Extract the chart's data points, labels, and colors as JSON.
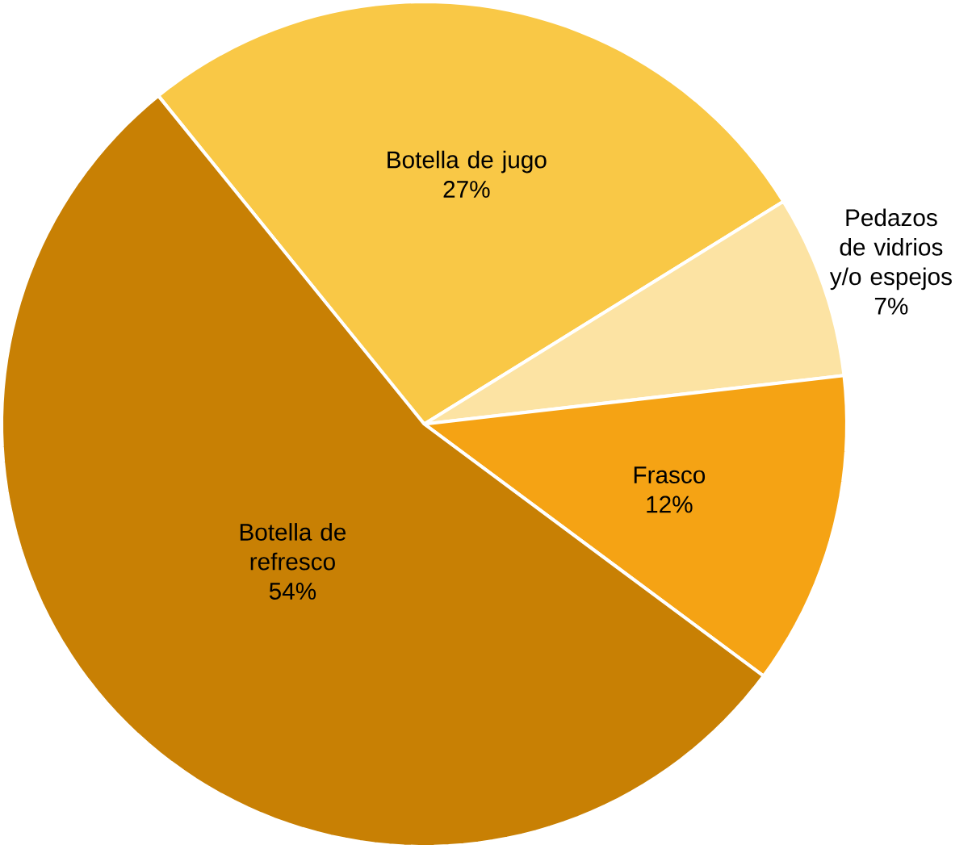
{
  "chart_data": {
    "type": "pie",
    "categories": [
      "Botella de jugo",
      "Pedazos de vidrios y/o espejos",
      "Frasco",
      "Botella de refresco"
    ],
    "values": [
      27,
      7,
      12,
      54
    ],
    "value_labels": [
      "27%",
      "7%",
      "12%",
      "54%"
    ],
    "colors": [
      "#f9c846",
      "#fce3a3",
      "#f5a314",
      "#c88004"
    ]
  }
}
